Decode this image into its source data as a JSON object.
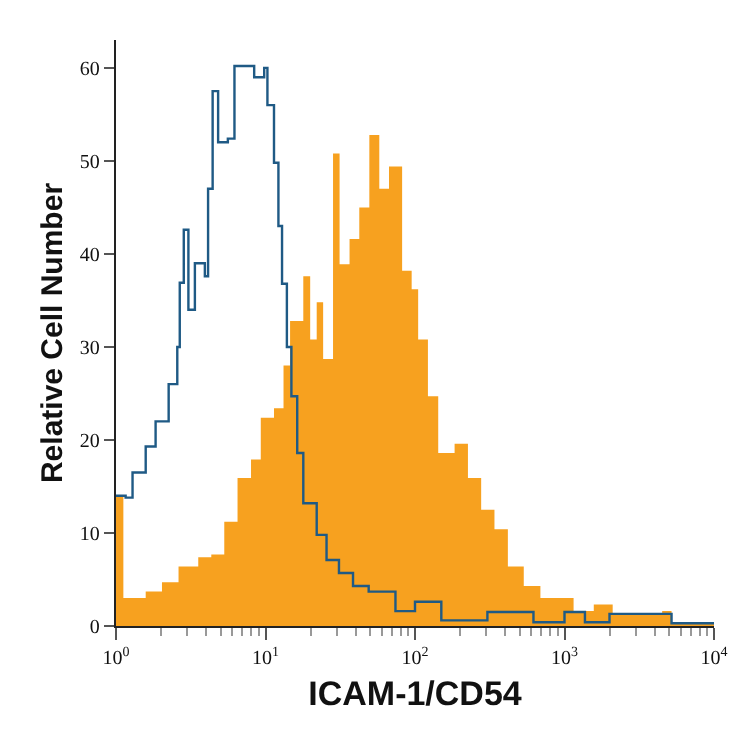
{
  "chart_data": {
    "type": "step",
    "xlabel": "ICAM-1/CD54",
    "ylabel": "Relative Cell Number",
    "log": "x",
    "xlim": [
      1,
      10000
    ],
    "xticks": [
      {
        "value": 1,
        "label": "10$^{0}$"
      },
      {
        "value": 10,
        "label": "10$^{1}$"
      },
      {
        "value": 100,
        "label": "10$^{2}$"
      },
      {
        "value": 1000,
        "label": "10$^{3}$"
      },
      {
        "value": 10000,
        "label": "10$^{4}$"
      }
    ],
    "ylim": [
      0,
      63
    ],
    "yticks": [
      0,
      10,
      20,
      30,
      40,
      50,
      60
    ],
    "series": [
      {
        "type": "area",
        "color": "#f7a11f",
        "x": [
          1,
          1.12,
          1.22,
          1.58,
          2.03,
          2.62,
          3.55,
          4.34,
          5.3,
          6.5,
          8,
          9.3,
          11.4,
          13.2,
          14.6,
          17.9,
          19.9,
          22,
          24.3,
          28.3,
          31.3,
          36.5,
          42.4,
          49.5,
          57.7,
          67,
          82,
          95,
          105,
          122,
          143,
          184,
          226,
          277,
          340,
          418,
          534,
          690,
          890,
          1150,
          1570,
          2100,
          2850,
          4500,
          5200,
          10000
        ],
        "values": [
          14,
          3,
          3,
          3.7,
          4.7,
          6.4,
          7.4,
          7.7,
          11.2,
          15.9,
          17.9,
          22.4,
          23.4,
          28,
          32.8,
          37.6,
          30.8,
          34.8,
          28.7,
          50.8,
          38.9,
          41.6,
          45,
          52.8,
          47,
          49.4,
          38.2,
          36.2,
          30.8,
          24.7,
          18.6,
          19.6,
          15.9,
          12.5,
          10.4,
          6.4,
          4.3,
          3,
          3,
          1.6,
          2.3,
          1.3,
          1.3,
          1.6,
          0.3,
          0.3
        ]
      },
      {
        "color": "#1f5a85",
        "x": [
          1,
          1.16,
          1.29,
          1.58,
          1.84,
          2.25,
          2.57,
          2.67,
          2.84,
          3.05,
          3.37,
          3.93,
          4.13,
          4.43,
          4.82,
          5.6,
          6.2,
          7.6,
          8.4,
          9.8,
          10.3,
          11.4,
          12.2,
          12.9,
          13.9,
          14.9,
          16.3,
          17.9,
          22,
          25.6,
          31,
          38.5,
          49,
          66,
          74,
          100,
          150,
          305,
          460,
          620,
          1000,
          1370,
          2000,
          2850,
          3680,
          5200,
          10000
        ],
        "values": [
          14,
          13.8,
          16.5,
          19.3,
          22,
          26,
          30,
          36.9,
          42.6,
          34,
          39,
          37.6,
          47,
          57.5,
          52,
          52.4,
          60.2,
          60.2,
          59,
          60,
          56,
          49.8,
          43,
          36.8,
          30,
          24.7,
          18.6,
          13.2,
          9.8,
          7.1,
          5.7,
          4.3,
          3.7,
          3.7,
          1.6,
          2.6,
          0.6,
          1.5,
          1.5,
          0.4,
          1.5,
          0.4,
          1.3,
          1.3,
          1.3,
          0.3,
          0.3
        ]
      }
    ]
  }
}
